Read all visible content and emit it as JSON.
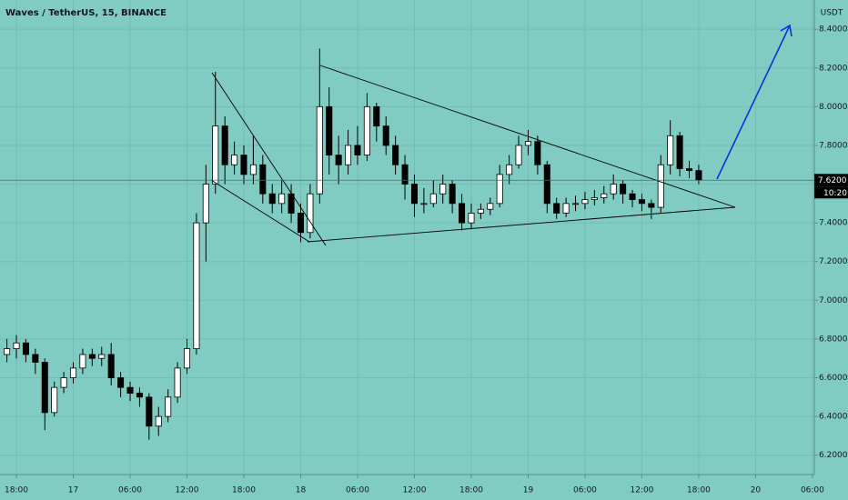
{
  "chart_data": {
    "type": "candlestick",
    "title": "Waves / TetherUS, 15, BINANCE",
    "y_axis_label": "USDT",
    "background": "#80cbc2",
    "up_color": "#ffffff",
    "down_color": "#000000",
    "grid": true,
    "x": [
      -1,
      0,
      1,
      2,
      3,
      4,
      5,
      6,
      7,
      8,
      9,
      10,
      11,
      12,
      13,
      14,
      15,
      16,
      17,
      18,
      19,
      20,
      21,
      22,
      23,
      24,
      25,
      26,
      27,
      28,
      29,
      30,
      31,
      32,
      33,
      34,
      35,
      36,
      37,
      38,
      39,
      40,
      41,
      42,
      43,
      44,
      45,
      46,
      47,
      48,
      49,
      50,
      51,
      52,
      53,
      54,
      55,
      56,
      57,
      58,
      59,
      60,
      61,
      62,
      63,
      64,
      65,
      66,
      67,
      68,
      69,
      70,
      71,
      72
    ],
    "open": [
      6.72,
      6.75,
      6.78,
      6.72,
      6.68,
      6.42,
      6.55,
      6.6,
      6.65,
      6.72,
      6.7,
      6.72,
      6.6,
      6.55,
      6.52,
      6.5,
      6.35,
      6.4,
      6.5,
      6.65,
      6.75,
      7.4,
      7.6,
      7.9,
      7.7,
      7.75,
      7.65,
      7.7,
      7.55,
      7.5,
      7.55,
      7.45,
      7.35,
      7.55,
      8.0,
      7.75,
      7.7,
      7.8,
      7.75,
      8.0,
      7.9,
      7.8,
      7.7,
      7.6,
      7.5,
      7.5,
      7.55,
      7.6,
      7.5,
      7.4,
      7.45,
      7.47,
      7.5,
      7.65,
      7.7,
      7.8,
      7.82,
      7.7,
      7.5,
      7.45,
      7.5,
      7.5,
      7.52,
      7.53,
      7.55,
      7.6,
      7.55,
      7.52,
      7.5,
      7.48,
      7.7,
      7.85,
      7.68,
      7.67
    ],
    "high": [
      6.8,
      6.82,
      6.8,
      6.75,
      6.7,
      6.58,
      6.63,
      6.68,
      6.75,
      6.75,
      6.76,
      6.78,
      6.63,
      6.58,
      6.55,
      6.52,
      6.45,
      6.54,
      6.68,
      6.8,
      7.45,
      7.7,
      8.18,
      7.95,
      7.82,
      7.8,
      7.85,
      7.75,
      7.6,
      7.62,
      7.6,
      7.5,
      7.6,
      8.3,
      8.1,
      7.85,
      7.88,
      7.9,
      8.07,
      8.02,
      7.95,
      7.85,
      7.75,
      7.65,
      7.58,
      7.62,
      7.65,
      7.62,
      7.55,
      7.5,
      7.5,
      7.53,
      7.7,
      7.75,
      7.85,
      7.88,
      7.85,
      7.72,
      7.53,
      7.53,
      7.54,
      7.56,
      7.57,
      7.59,
      7.65,
      7.62,
      7.57,
      7.55,
      7.52,
      7.75,
      7.93,
      7.87,
      7.72,
      7.7
    ],
    "low": [
      6.68,
      6.7,
      6.68,
      6.62,
      6.33,
      6.4,
      6.52,
      6.57,
      6.62,
      6.66,
      6.66,
      6.56,
      6.5,
      6.48,
      6.45,
      6.28,
      6.3,
      6.37,
      6.47,
      6.62,
      6.72,
      7.2,
      7.55,
      7.6,
      7.65,
      7.6,
      7.6,
      7.5,
      7.45,
      7.45,
      7.4,
      7.3,
      7.32,
      7.5,
      7.65,
      7.6,
      7.65,
      7.7,
      7.72,
      7.82,
      7.75,
      7.65,
      7.52,
      7.43,
      7.45,
      7.48,
      7.5,
      7.45,
      7.36,
      7.37,
      7.42,
      7.44,
      7.48,
      7.6,
      7.68,
      7.75,
      7.65,
      7.45,
      7.42,
      7.43,
      7.46,
      7.47,
      7.49,
      7.5,
      7.52,
      7.5,
      7.48,
      7.46,
      7.42,
      7.45,
      7.65,
      7.64,
      7.63,
      7.6
    ],
    "close": [
      6.75,
      6.78,
      6.72,
      6.68,
      6.42,
      6.55,
      6.6,
      6.65,
      6.72,
      6.7,
      6.72,
      6.6,
      6.55,
      6.52,
      6.5,
      6.35,
      6.4,
      6.5,
      6.65,
      6.75,
      7.4,
      7.6,
      7.9,
      7.7,
      7.75,
      7.65,
      7.7,
      7.55,
      7.5,
      7.55,
      7.45,
      7.35,
      7.55,
      8.0,
      7.75,
      7.7,
      7.8,
      7.75,
      8.0,
      7.9,
      7.8,
      7.7,
      7.6,
      7.5,
      7.5,
      7.55,
      7.6,
      7.5,
      7.4,
      7.45,
      7.47,
      7.5,
      7.65,
      7.7,
      7.8,
      7.82,
      7.7,
      7.5,
      7.45,
      7.5,
      7.5,
      7.52,
      7.53,
      7.55,
      7.6,
      7.55,
      7.52,
      7.5,
      7.48,
      7.7,
      7.85,
      7.68,
      7.67,
      7.62
    ],
    "xlim": [
      -1.73,
      84.2
    ],
    "xticks": [
      {
        "value": 0,
        "label": "18:00"
      },
      {
        "value": 6,
        "label": "17"
      },
      {
        "value": 12,
        "label": "06:00"
      },
      {
        "value": 18,
        "label": "12:00"
      },
      {
        "value": 24,
        "label": "18:00"
      },
      {
        "value": 30,
        "label": "18"
      },
      {
        "value": 36,
        "label": "06:00"
      },
      {
        "value": 42,
        "label": "12:00"
      },
      {
        "value": 48,
        "label": "18:00"
      },
      {
        "value": 54,
        "label": "19"
      },
      {
        "value": 60,
        "label": "06:00"
      },
      {
        "value": 66,
        "label": "12:00"
      },
      {
        "value": 72,
        "label": "18:00"
      },
      {
        "value": 78,
        "label": "20"
      },
      {
        "value": 84,
        "label": "06:00"
      }
    ],
    "ylim": [
      6.1,
      8.551
    ],
    "yticks": [
      {
        "value": 6.2,
        "label": "6.2000"
      },
      {
        "value": 6.4,
        "label": "6.4000"
      },
      {
        "value": 6.6,
        "label": "6.6000"
      },
      {
        "value": 6.8,
        "label": "6.8000"
      },
      {
        "value": 7.0,
        "label": "7.0000"
      },
      {
        "value": 7.2,
        "label": "7.2000"
      },
      {
        "value": 7.4,
        "label": "7.4000"
      },
      {
        "value": 7.6,
        "label": "7.6000"
      },
      {
        "value": 7.8,
        "label": "7.8000"
      },
      {
        "value": 8.0,
        "label": "8.0000"
      },
      {
        "value": 8.2,
        "label": "8.2000"
      },
      {
        "value": 8.4,
        "label": "8.4000"
      }
    ],
    "last_price": {
      "value": 7.62,
      "label": "7.6200"
    },
    "countdown": "10:20"
  }
}
